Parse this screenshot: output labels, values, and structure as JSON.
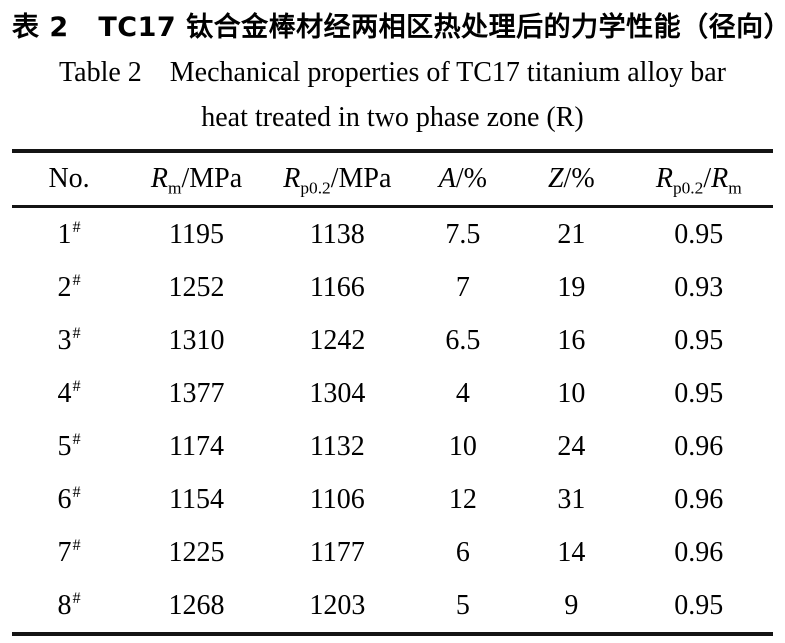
{
  "title": {
    "zh": "表 2   TC17 钛合金棒材经两相区热处理后的力学性能（径向）",
    "en_line1": "Table 2    Mechanical properties of TC17 titanium alloy bar",
    "en_line2": "heat treated in two phase zone (R)"
  },
  "table": {
    "columns": [
      {
        "name": "no",
        "segments": [
          {
            "t": "No."
          }
        ]
      },
      {
        "name": "rm",
        "segments": [
          {
            "t": "R",
            "italic": true
          },
          {
            "t": "m",
            "sub": true
          },
          {
            "t": "/MPa"
          }
        ]
      },
      {
        "name": "rp02",
        "segments": [
          {
            "t": "R",
            "italic": true
          },
          {
            "t": "p0.2",
            "sub": true
          },
          {
            "t": "/MPa"
          }
        ]
      },
      {
        "name": "a",
        "segments": [
          {
            "t": "A",
            "italic": true
          },
          {
            "t": "/%"
          }
        ]
      },
      {
        "name": "z",
        "segments": [
          {
            "t": "Z",
            "italic": true
          },
          {
            "t": "/%"
          }
        ]
      },
      {
        "name": "ratio",
        "segments": [
          {
            "t": "R",
            "italic": true
          },
          {
            "t": "p0.2",
            "sub": true
          },
          {
            "t": "/"
          },
          {
            "t": "R",
            "italic": true
          },
          {
            "t": "m",
            "sub": true
          }
        ]
      }
    ],
    "rows": [
      {
        "no": "1",
        "no_sup": "#",
        "values": [
          "1195",
          "1138",
          "7.5",
          "21",
          "0.95"
        ]
      },
      {
        "no": "2",
        "no_sup": "#",
        "values": [
          "1252",
          "1166",
          "7",
          "19",
          "0.93"
        ]
      },
      {
        "no": "3",
        "no_sup": "#",
        "values": [
          "1310",
          "1242",
          "6.5",
          "16",
          "0.95"
        ]
      },
      {
        "no": "4",
        "no_sup": "#",
        "values": [
          "1377",
          "1304",
          "4",
          "10",
          "0.95"
        ]
      },
      {
        "no": "5",
        "no_sup": "#",
        "values": [
          "1174",
          "1132",
          "10",
          "24",
          "0.96"
        ]
      },
      {
        "no": "6",
        "no_sup": "#",
        "values": [
          "1154",
          "1106",
          "12",
          "31",
          "0.96"
        ]
      },
      {
        "no": "7",
        "no_sup": "#",
        "values": [
          "1225",
          "1177",
          "6",
          "14",
          "0.96"
        ]
      },
      {
        "no": "8",
        "no_sup": "#",
        "values": [
          "1268",
          "1203",
          "5",
          "9",
          "0.95"
        ]
      }
    ]
  },
  "colors": {
    "text": "#000000",
    "background": "#ffffff",
    "rule": "#141414"
  }
}
